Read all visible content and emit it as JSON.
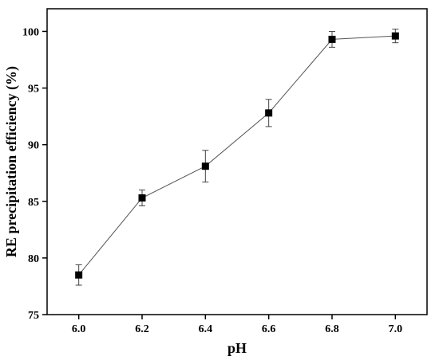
{
  "chart_data": {
    "type": "line",
    "title": "",
    "xlabel": "pH",
    "ylabel": "RE precipitation efficiency (%)",
    "xlim": [
      5.9,
      7.1
    ],
    "ylim": [
      75,
      102
    ],
    "x_ticks": [
      "6.0",
      "6.2",
      "6.4",
      "6.6",
      "6.8",
      "7.0"
    ],
    "y_ticks": [
      "75",
      "80",
      "85",
      "90",
      "95",
      "100"
    ],
    "series": [
      {
        "x": [
          6.0,
          6.2,
          6.4,
          6.6,
          6.8,
          7.0
        ],
        "y": [
          78.5,
          85.3,
          88.1,
          92.8,
          99.3,
          99.6
        ],
        "error": [
          0.9,
          0.7,
          1.4,
          1.2,
          0.7,
          0.6
        ],
        "marker": "square",
        "color": "#000000",
        "line_color": "#555555"
      }
    ]
  }
}
